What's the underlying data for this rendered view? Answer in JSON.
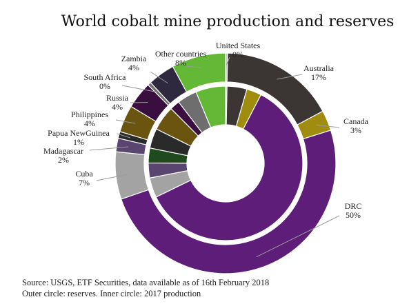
{
  "chart_data": {
    "type": "pie",
    "title": "World cobalt mine production and reserves",
    "categories": [
      "United States",
      "Australia",
      "Canada",
      "DRC",
      "Cuba",
      "Madagascar",
      "Papua NewGuinea",
      "Philippines",
      "Russia",
      "South Africa",
      "Zambia",
      "Other countries"
    ],
    "colors": [
      "#c8c8c8",
      "#3b3634",
      "#a08c0e",
      "#5e1d79",
      "#a3a3a3",
      "#5a4470",
      "#2a2a2a",
      "#6a5410",
      "#3a0f40",
      "#6e6e6e",
      "#2f2940",
      "#63b935"
    ],
    "series": [
      {
        "ring": "outer",
        "values": [
          0.3,
          17,
          3,
          50,
          7,
          2,
          1,
          4,
          4,
          0.5,
          4,
          8
        ]
      },
      {
        "ring": "inner",
        "values": [
          0.3,
          4,
          3,
          58,
          4,
          3,
          3,
          4,
          5,
          2,
          4,
          6
        ],
        "colors": [
          "#c8c8c8",
          "#3b3634",
          "#a08c0e",
          "#5e1d79",
          "#a3a3a3",
          "#5a4470",
          "#1e4a1e",
          "#2a2a2a",
          "#6a5410",
          "#3a0f40",
          "#6e6e6e",
          "#63b935"
        ]
      }
    ],
    "labels": [
      {
        "name": "United States",
        "pct": "0%"
      },
      {
        "name": "Australia",
        "pct": "17%"
      },
      {
        "name": "Canada",
        "pct": "3%"
      },
      {
        "name": "DRC",
        "pct": "50%"
      },
      {
        "name": "Cuba",
        "pct": "7%"
      },
      {
        "name": "Madagascar",
        "pct": "2%"
      },
      {
        "name": "Papua NewGuinea",
        "pct": "1%"
      },
      {
        "name": "Philippines",
        "pct": "4%"
      },
      {
        "name": "Russia",
        "pct": "4%"
      },
      {
        "name": "South Africa",
        "pct": "0%"
      },
      {
        "name": "Zambia",
        "pct": "4%"
      },
      {
        "name": "Other countries",
        "pct": "8%"
      }
    ]
  },
  "footer": {
    "source": "Source: USGS, ETF Securities, data available as of 16th February 2018",
    "note": "Outer circle: reserves. Inner circle: 2017 production"
  }
}
